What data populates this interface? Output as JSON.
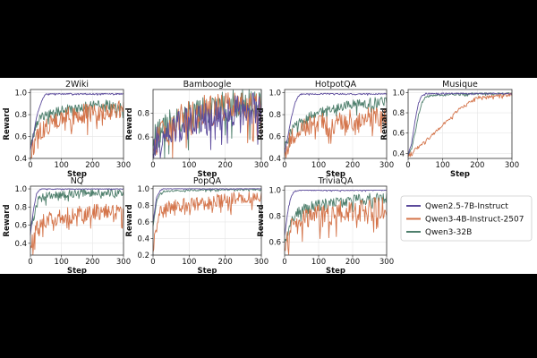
{
  "figure": {
    "legend_position": "right"
  },
  "legend": [
    {
      "name": "Qwen2.5-7B-Instruct",
      "color": "#5b4a9b"
    },
    {
      "name": "Qwen3-4B-Instruct-2507",
      "color": "#d4744a"
    },
    {
      "name": "Qwen3-32B",
      "color": "#4e7f6c"
    }
  ],
  "chart_data": [
    {
      "type": "line",
      "title": "2Wiki",
      "xlabel": "Step",
      "ylabel": "Reward",
      "xlim": [
        0,
        300
      ],
      "ylim": [
        0.4,
        1.03
      ],
      "xticks": [
        "0",
        "100",
        "200",
        "300"
      ],
      "yticks": [
        "0.4",
        "0.6",
        "0.8",
        "1.0"
      ],
      "series": [
        {
          "name": "Qwen2.5-7B-Instruct",
          "x": [
            0,
            10,
            20,
            30,
            40,
            50,
            100,
            200,
            300
          ],
          "values": [
            0.48,
            0.62,
            0.78,
            0.88,
            0.95,
            0.99,
            0.99,
            0.99,
            0.99
          ]
        },
        {
          "name": "Qwen3-4B-Instruct-2507",
          "x": [
            0,
            25,
            50,
            100,
            150,
            200,
            250,
            300
          ],
          "values": [
            0.45,
            0.62,
            0.7,
            0.77,
            0.8,
            0.82,
            0.83,
            0.84
          ]
        },
        {
          "name": "Qwen3-32B",
          "x": [
            0,
            25,
            50,
            100,
            150,
            200,
            250,
            300
          ],
          "values": [
            0.55,
            0.75,
            0.8,
            0.84,
            0.86,
            0.88,
            0.89,
            0.85
          ]
        }
      ]
    },
    {
      "type": "line",
      "title": "Bamboogle",
      "xlabel": "Step",
      "ylabel": "Reward",
      "xlim": [
        0,
        300
      ],
      "ylim": [
        0.42,
        1.0
      ],
      "xticks": [
        "0",
        "100",
        "200",
        "300"
      ],
      "yticks": [
        "0.6",
        "0.8"
      ],
      "series": [
        {
          "name": "Qwen2.5-7B-Instruct",
          "x": [
            0,
            50,
            100,
            150,
            200,
            250,
            300
          ],
          "values": [
            0.52,
            0.66,
            0.72,
            0.76,
            0.8,
            0.83,
            0.85
          ]
        },
        {
          "name": "Qwen3-4B-Instruct-2507",
          "x": [
            0,
            50,
            100,
            150,
            200,
            250,
            300
          ],
          "values": [
            0.55,
            0.7,
            0.78,
            0.82,
            0.84,
            0.86,
            0.86
          ]
        },
        {
          "name": "Qwen3-32B",
          "x": [
            0,
            50,
            100,
            150,
            200,
            250,
            300
          ],
          "values": [
            0.58,
            0.7,
            0.76,
            0.82,
            0.86,
            0.89,
            0.9
          ]
        }
      ]
    },
    {
      "type": "line",
      "title": "HotpotQA",
      "xlabel": "Step",
      "ylabel": "Reward",
      "xlim": [
        0,
        300
      ],
      "ylim": [
        0.4,
        1.03
      ],
      "xticks": [
        "0",
        "100",
        "200",
        "300"
      ],
      "yticks": [
        "0.4",
        "0.6",
        "0.8",
        "1.0"
      ],
      "series": [
        {
          "name": "Qwen2.5-7B-Instruct",
          "x": [
            0,
            10,
            20,
            30,
            40,
            50,
            100,
            200,
            300
          ],
          "values": [
            0.45,
            0.6,
            0.78,
            0.9,
            0.97,
            0.99,
            0.99,
            0.99,
            0.99
          ]
        },
        {
          "name": "Qwen3-4B-Instruct-2507",
          "x": [
            0,
            25,
            50,
            100,
            150,
            200,
            250,
            300
          ],
          "values": [
            0.45,
            0.62,
            0.68,
            0.72,
            0.74,
            0.76,
            0.78,
            0.78
          ]
        },
        {
          "name": "Qwen3-32B",
          "x": [
            0,
            25,
            50,
            100,
            150,
            200,
            250,
            300
          ],
          "values": [
            0.5,
            0.68,
            0.74,
            0.82,
            0.86,
            0.89,
            0.91,
            0.92
          ]
        }
      ]
    },
    {
      "type": "line",
      "title": "Musique",
      "xlabel": "Step",
      "ylabel": "Reward",
      "xlim": [
        0,
        300
      ],
      "ylim": [
        0.35,
        1.03
      ],
      "xticks": [
        "0",
        "100",
        "200",
        "300"
      ],
      "yticks": [
        "0.4",
        "0.6",
        "0.8",
        "1.0"
      ],
      "series": [
        {
          "name": "Qwen2.5-7B-Instruct",
          "x": [
            0,
            10,
            20,
            30,
            40,
            50,
            100,
            200,
            300
          ],
          "values": [
            0.38,
            0.5,
            0.72,
            0.9,
            0.97,
            0.99,
            0.99,
            0.99,
            0.99
          ]
        },
        {
          "name": "Qwen3-4B-Instruct-2507",
          "x": [
            0,
            25,
            50,
            75,
            100,
            125,
            150,
            175,
            200,
            250,
            300
          ],
          "values": [
            0.38,
            0.45,
            0.52,
            0.6,
            0.68,
            0.76,
            0.84,
            0.9,
            0.95,
            0.97,
            0.98
          ]
        },
        {
          "name": "Qwen3-32B",
          "x": [
            0,
            10,
            20,
            30,
            40,
            50,
            100,
            200,
            300
          ],
          "values": [
            0.38,
            0.45,
            0.6,
            0.78,
            0.9,
            0.96,
            0.98,
            0.99,
            0.99
          ]
        }
      ]
    },
    {
      "type": "line",
      "title": "NQ",
      "xlabel": "Step",
      "ylabel": "Reward",
      "xlim": [
        0,
        300
      ],
      "ylim": [
        0.27,
        1.03
      ],
      "xticks": [
        "0",
        "100",
        "200",
        "300"
      ],
      "yticks": [
        "0.4",
        "0.6",
        "0.8",
        "1.0"
      ],
      "series": [
        {
          "name": "Qwen2.5-7B-Instruct",
          "x": [
            0,
            10,
            20,
            30,
            40,
            100,
            200,
            300
          ],
          "values": [
            0.5,
            0.78,
            0.95,
            0.99,
            1.0,
            1.0,
            1.0,
            1.0
          ]
        },
        {
          "name": "Qwen3-4B-Instruct-2507",
          "x": [
            0,
            25,
            50,
            100,
            150,
            200,
            250,
            300
          ],
          "values": [
            0.35,
            0.6,
            0.65,
            0.7,
            0.72,
            0.74,
            0.75,
            0.75
          ]
        },
        {
          "name": "Qwen3-32B",
          "x": [
            0,
            25,
            50,
            100,
            150,
            200,
            250,
            300
          ],
          "values": [
            0.55,
            0.88,
            0.92,
            0.94,
            0.95,
            0.96,
            0.96,
            0.96
          ]
        }
      ]
    },
    {
      "type": "line",
      "title": "PopQA",
      "xlabel": "Step",
      "ylabel": "Reward",
      "xlim": [
        0,
        300
      ],
      "ylim": [
        0.2,
        1.03
      ],
      "xticks": [
        "0",
        "100",
        "200",
        "300"
      ],
      "yticks": [
        "0.2",
        "0.4",
        "0.6",
        "0.8",
        "1.0"
      ],
      "series": [
        {
          "name": "Qwen2.5-7B-Instruct",
          "x": [
            0,
            10,
            20,
            30,
            100,
            200,
            300
          ],
          "values": [
            0.6,
            0.9,
            0.98,
            1.0,
            1.0,
            1.0,
            1.0
          ]
        },
        {
          "name": "Qwen3-4B-Instruct-2507",
          "x": [
            0,
            10,
            20,
            30,
            50,
            100,
            150,
            200,
            250,
            300
          ],
          "values": [
            0.25,
            0.55,
            0.7,
            0.75,
            0.78,
            0.82,
            0.84,
            0.86,
            0.88,
            0.89
          ]
        },
        {
          "name": "Qwen3-32B",
          "x": [
            0,
            10,
            20,
            30,
            100,
            200,
            300
          ],
          "values": [
            0.55,
            0.85,
            0.94,
            0.97,
            0.98,
            0.99,
            0.99
          ]
        }
      ]
    },
    {
      "type": "line",
      "title": "TriviaQA",
      "xlabel": "Step",
      "ylabel": "Reward",
      "xlim": [
        0,
        300
      ],
      "ylim": [
        0.5,
        1.03
      ],
      "xticks": [
        "0",
        "100",
        "200",
        "300"
      ],
      "yticks": [
        "0.6",
        "0.8",
        "1.0"
      ],
      "series": [
        {
          "name": "Qwen2.5-7B-Instruct",
          "x": [
            0,
            10,
            20,
            30,
            40,
            100,
            200,
            300
          ],
          "values": [
            0.65,
            0.85,
            0.96,
            0.99,
            1.0,
            1.0,
            1.0,
            1.0
          ]
        },
        {
          "name": "Qwen3-4B-Instruct-2507",
          "x": [
            0,
            25,
            50,
            100,
            150,
            200,
            250,
            300
          ],
          "values": [
            0.55,
            0.72,
            0.78,
            0.8,
            0.82,
            0.84,
            0.85,
            0.86
          ]
        },
        {
          "name": "Qwen3-32B",
          "x": [
            0,
            25,
            50,
            100,
            150,
            200,
            250,
            300
          ],
          "values": [
            0.6,
            0.8,
            0.85,
            0.88,
            0.9,
            0.92,
            0.93,
            0.94
          ]
        }
      ]
    }
  ]
}
